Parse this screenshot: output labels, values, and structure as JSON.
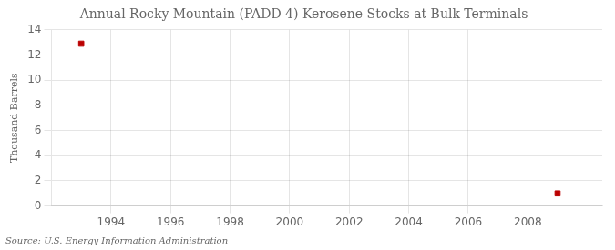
{
  "chart_data": {
    "type": "scatter",
    "title": "Annual Rocky Mountain (PADD 4) Kerosene Stocks at Bulk Terminals",
    "ylabel": "Thousand Barrels",
    "source": "Source: U.S. Energy Information Administration",
    "x": [
      1993,
      2009
    ],
    "values": [
      12.9,
      1.0
    ],
    "color": "#bb0000",
    "marker": "square",
    "xlim": [
      1992.0,
      2010.5
    ],
    "ylim": [
      0,
      14
    ],
    "xticks": [
      1994,
      1996,
      1998,
      2000,
      2002,
      2004,
      2006,
      2008
    ],
    "yticks": [
      0,
      2,
      4,
      6,
      8,
      10,
      12,
      14
    ],
    "grid": true
  }
}
